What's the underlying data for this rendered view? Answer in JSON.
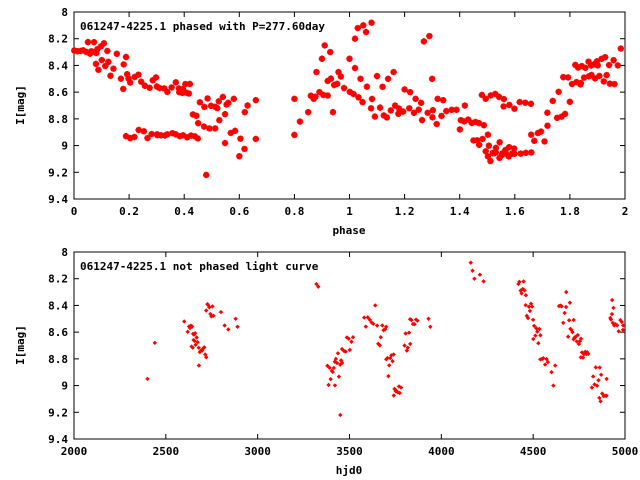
{
  "chart_data": [
    {
      "type": "scatter",
      "title": "061247-4225.1 phased with P=277.60day",
      "xlabel": "phase",
      "ylabel": "I[mag]",
      "xlim": [
        0,
        2
      ],
      "ylim": [
        9.4,
        8.0
      ],
      "y_inverted": true,
      "xticks": [
        0,
        0.2,
        0.4,
        0.6,
        0.8,
        1,
        1.2,
        1.4,
        1.6,
        1.8,
        2
      ],
      "xtick_labels": [
        "0",
        "0.2",
        "0.4",
        "0.6",
        "0.8",
        "1",
        "1.2",
        "1.4",
        "1.6",
        "1.8",
        "2"
      ],
      "yticks": [
        8,
        8.2,
        8.4,
        8.6,
        8.8,
        9,
        9.2,
        9.4
      ],
      "ytick_labels": [
        "8",
        "8.2",
        "8.4",
        "8.6",
        "8.8",
        "9",
        "9.2",
        "9.4"
      ],
      "marker_color": "#ff0000",
      "marker": "star",
      "segments": [
        [
          0.0,
          0.08,
          8.28,
          8.32,
          8
        ],
        [
          0.05,
          0.12,
          8.22,
          8.3,
          7
        ],
        [
          0.08,
          0.2,
          8.3,
          8.5,
          12
        ],
        [
          0.18,
          0.3,
          8.45,
          8.58,
          10
        ],
        [
          0.3,
          0.42,
          8.52,
          8.6,
          10
        ],
        [
          0.38,
          0.55,
          8.6,
          8.78,
          14
        ],
        [
          0.19,
          0.3,
          8.85,
          8.95,
          8
        ],
        [
          0.3,
          0.45,
          8.9,
          8.96,
          12
        ],
        [
          0.45,
          0.55,
          8.75,
          8.88,
          6
        ],
        [
          0.55,
          0.62,
          8.88,
          9.05,
          5
        ],
        [
          0.86,
          0.92,
          8.55,
          8.65,
          5
        ],
        [
          0.92,
          0.98,
          8.45,
          8.6,
          6
        ],
        [
          1.0,
          1.08,
          8.55,
          8.7,
          6
        ],
        [
          1.08,
          1.18,
          8.7,
          8.8,
          8
        ],
        [
          1.18,
          1.3,
          8.72,
          8.82,
          8
        ],
        [
          1.3,
          1.42,
          8.7,
          8.85,
          8
        ],
        [
          1.4,
          1.5,
          8.8,
          8.92,
          8
        ],
        [
          1.45,
          1.58,
          8.95,
          9.06,
          12
        ],
        [
          1.5,
          1.6,
          9.02,
          9.12,
          10
        ],
        [
          1.6,
          1.66,
          9.05,
          9.08,
          4
        ],
        [
          1.66,
          1.72,
          8.85,
          9.0,
          6
        ],
        [
          1.72,
          1.8,
          8.65,
          8.8,
          6
        ],
        [
          1.76,
          1.84,
          8.48,
          8.6,
          6
        ],
        [
          1.82,
          1.9,
          8.35,
          8.42,
          8
        ],
        [
          1.84,
          1.96,
          8.45,
          8.55,
          10
        ],
        [
          1.9,
          2.0,
          8.25,
          8.4,
          8
        ],
        [
          1.48,
          1.56,
          8.6,
          8.66,
          6
        ],
        [
          1.56,
          1.66,
          8.66,
          8.74,
          6
        ]
      ],
      "points": [
        [
          0.48,
          9.22
        ],
        [
          0.52,
          8.72
        ],
        [
          0.56,
          8.68
        ],
        [
          0.58,
          8.65
        ],
        [
          0.6,
          9.08
        ],
        [
          0.62,
          8.75
        ],
        [
          0.63,
          8.7
        ],
        [
          0.66,
          8.66
        ],
        [
          0.66,
          8.95
        ],
        [
          0.8,
          8.65
        ],
        [
          0.8,
          8.92
        ],
        [
          0.82,
          8.82
        ],
        [
          0.85,
          8.75
        ],
        [
          0.87,
          8.65
        ],
        [
          0.88,
          8.45
        ],
        [
          0.9,
          8.35
        ],
        [
          0.91,
          8.25
        ],
        [
          0.93,
          8.3
        ],
        [
          0.94,
          8.75
        ],
        [
          0.96,
          8.45
        ],
        [
          1.0,
          8.35
        ],
        [
          1.02,
          8.42
        ],
        [
          1.04,
          8.5
        ],
        [
          1.02,
          8.2
        ],
        [
          1.03,
          8.12
        ],
        [
          1.05,
          8.1
        ],
        [
          1.06,
          8.15
        ],
        [
          1.08,
          8.08
        ],
        [
          1.1,
          8.48
        ],
        [
          1.12,
          8.56
        ],
        [
          1.14,
          8.5
        ],
        [
          1.16,
          8.45
        ],
        [
          1.2,
          8.58
        ],
        [
          1.22,
          8.6
        ],
        [
          1.24,
          8.65
        ],
        [
          1.26,
          8.68
        ],
        [
          1.27,
          8.22
        ],
        [
          1.29,
          8.18
        ],
        [
          1.3,
          8.5
        ],
        [
          1.32,
          8.65
        ],
        [
          1.34,
          8.66
        ]
      ]
    },
    {
      "type": "scatter",
      "title": "061247-4225.1 not phased light curve",
      "xlabel": "hjd0",
      "ylabel": "I[mag]",
      "xlim": [
        2000,
        5000
      ],
      "ylim": [
        9.4,
        8.0
      ],
      "y_inverted": true,
      "xticks": [
        2000,
        2500,
        3000,
        3500,
        4000,
        4500,
        5000
      ],
      "xtick_labels": [
        "2000",
        "2500",
        "3000",
        "3500",
        "4000",
        "4500",
        "5000"
      ],
      "yticks": [
        8,
        8.2,
        8.4,
        8.6,
        8.8,
        9,
        9.2,
        9.4
      ],
      "ytick_labels": [
        "8",
        "8.2",
        "8.4",
        "8.6",
        "8.8",
        "9",
        "9.2",
        "9.4"
      ],
      "marker_color": "#ff0000",
      "marker": "diamond",
      "segments": [
        [
          2620,
          2660,
          8.55,
          8.62,
          8
        ],
        [
          2640,
          2680,
          8.62,
          8.72,
          8
        ],
        [
          2680,
          2720,
          8.7,
          8.88,
          8
        ],
        [
          2720,
          2760,
          8.35,
          8.5,
          8
        ],
        [
          3380,
          3420,
          8.85,
          9.0,
          8
        ],
        [
          3420,
          3460,
          8.75,
          8.95,
          8
        ],
        [
          3460,
          3520,
          8.62,
          8.75,
          8
        ],
        [
          3580,
          3630,
          8.48,
          8.58,
          6
        ],
        [
          3650,
          3700,
          8.52,
          8.7,
          8
        ],
        [
          3700,
          3740,
          8.75,
          8.95,
          8
        ],
        [
          3740,
          3780,
          9.0,
          9.1,
          8
        ],
        [
          3800,
          3830,
          8.6,
          8.75,
          6
        ],
        [
          3830,
          3870,
          8.5,
          8.56,
          6
        ],
        [
          4420,
          4460,
          8.22,
          8.35,
          8
        ],
        [
          4460,
          4500,
          8.38,
          8.52,
          8
        ],
        [
          4500,
          4540,
          8.55,
          8.7,
          8
        ],
        [
          4540,
          4580,
          8.75,
          8.85,
          6
        ],
        [
          4640,
          4680,
          8.4,
          8.55,
          6
        ],
        [
          4690,
          4720,
          8.5,
          8.65,
          6
        ],
        [
          4720,
          4760,
          8.62,
          8.7,
          8
        ],
        [
          4760,
          4800,
          8.72,
          8.82,
          8
        ],
        [
          4820,
          4870,
          8.85,
          9.05,
          8
        ],
        [
          4860,
          4900,
          9.05,
          9.12,
          6
        ],
        [
          4920,
          4950,
          8.4,
          8.55,
          8
        ],
        [
          4950,
          4990,
          8.45,
          8.6,
          6
        ]
      ],
      "points": [
        [
          2400,
          8.95
        ],
        [
          2440,
          8.68
        ],
        [
          2600,
          8.52
        ],
        [
          2800,
          8.45
        ],
        [
          2820,
          8.55
        ],
        [
          2840,
          8.58
        ],
        [
          2880,
          8.5
        ],
        [
          2890,
          8.56
        ],
        [
          3320,
          8.24
        ],
        [
          3330,
          8.26
        ],
        [
          3450,
          9.22
        ],
        [
          3640,
          8.4
        ],
        [
          3930,
          8.5
        ],
        [
          3940,
          8.56
        ],
        [
          4160,
          8.08
        ],
        [
          4170,
          8.14
        ],
        [
          4180,
          8.2
        ],
        [
          4210,
          8.17
        ],
        [
          4230,
          8.22
        ],
        [
          4600,
          8.9
        ],
        [
          4610,
          9.0
        ],
        [
          4620,
          8.85
        ],
        [
          4680,
          8.3
        ],
        [
          4700,
          8.38
        ],
        [
          4900,
          8.95
        ],
        [
          4930,
          8.36
        ],
        [
          4990,
          8.55
        ]
      ]
    }
  ]
}
